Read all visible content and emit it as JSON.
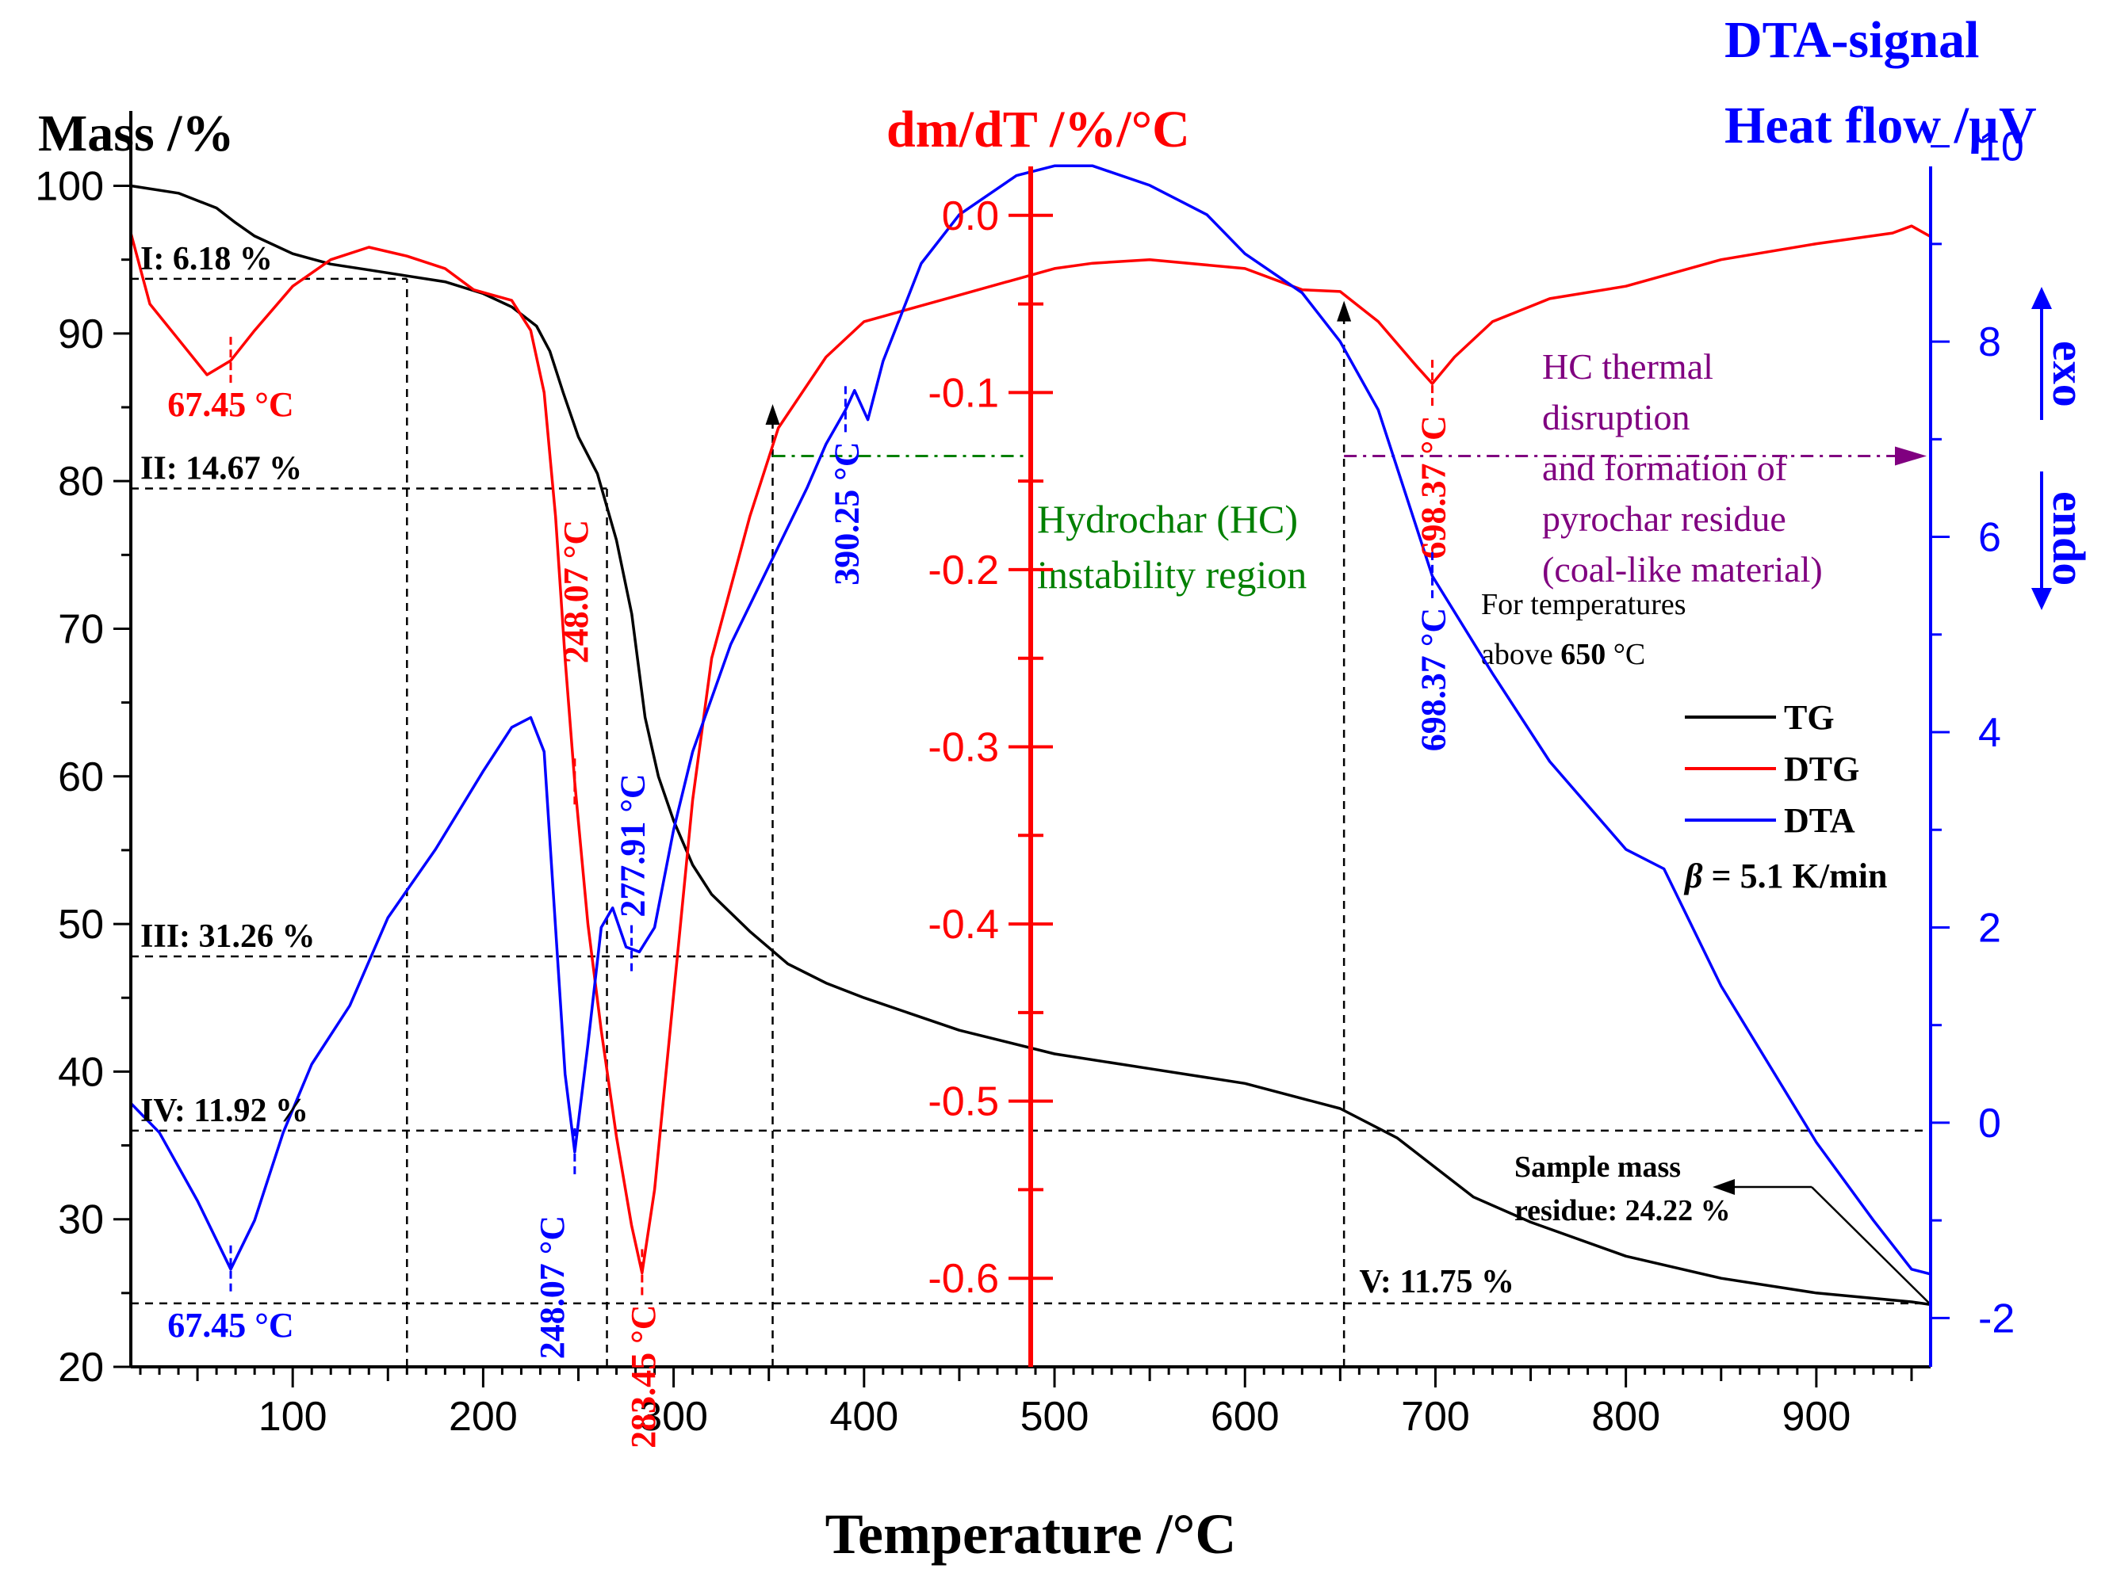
{
  "chart_data": {
    "type": "line",
    "xlabel": "Temperature /",
    "xlabel_unit": "°C",
    "xlim": [
      15,
      960
    ],
    "x_ticks": [
      100,
      200,
      300,
      400,
      500,
      600,
      700,
      800,
      900
    ],
    "axes": {
      "mass": {
        "label": "Mass /%",
        "ylim": [
          20,
          104
        ],
        "ticks": [
          20,
          30,
          40,
          50,
          60,
          70,
          80,
          90,
          100
        ],
        "color": "#000000",
        "position": "left"
      },
      "dtg": {
        "label_main": "dm/dT /%/",
        "label_unit": "°C",
        "ylim": [
          -0.65,
          0.05
        ],
        "ticks": [
          0.0,
          -0.1,
          -0.2,
          -0.3,
          -0.4,
          -0.5,
          -0.6
        ],
        "tick_labels": [
          "0.0",
          "-0.1",
          "-0.2",
          "-0.3",
          "-0.4",
          "-0.5",
          "-0.6"
        ],
        "color": "#ff0000",
        "position": "center"
      },
      "dta": {
        "label_line1": "DTA-signal",
        "label_line2": "Heat flow /µV",
        "ylim": [
          -2.5,
          10.2
        ],
        "ticks": [
          -2,
          0,
          2,
          4,
          6,
          8,
          10
        ],
        "tick_labels": [
          "-2",
          "0",
          "2",
          "4",
          "6",
          "8",
          "10"
        ],
        "color": "#0000ff",
        "position": "right",
        "exo_label": "exo",
        "endo_label": "endo"
      }
    },
    "series": [
      {
        "name": "TG",
        "axis": "mass",
        "color": "#000000",
        "points": [
          [
            15,
            100
          ],
          [
            40,
            99.5
          ],
          [
            60,
            98.5
          ],
          [
            70,
            97.5
          ],
          [
            80,
            96.6
          ],
          [
            100,
            95.4
          ],
          [
            120,
            94.7
          ],
          [
            140,
            94.3
          ],
          [
            160,
            93.9
          ],
          [
            180,
            93.5
          ],
          [
            200,
            92.7
          ],
          [
            215,
            91.8
          ],
          [
            228,
            90.5
          ],
          [
            235,
            88.8
          ],
          [
            242,
            86
          ],
          [
            250,
            83
          ],
          [
            260,
            80.5
          ],
          [
            270,
            76
          ],
          [
            278,
            71
          ],
          [
            285,
            64
          ],
          [
            292,
            60
          ],
          [
            300,
            57
          ],
          [
            310,
            54
          ],
          [
            320,
            52
          ],
          [
            340,
            49.5
          ],
          [
            360,
            47.3
          ],
          [
            380,
            46
          ],
          [
            400,
            45
          ],
          [
            450,
            42.8
          ],
          [
            500,
            41.2
          ],
          [
            550,
            40.2
          ],
          [
            600,
            39.2
          ],
          [
            650,
            37.5
          ],
          [
            680,
            35.5
          ],
          [
            700,
            33.5
          ],
          [
            720,
            31.5
          ],
          [
            750,
            29.8
          ],
          [
            800,
            27.5
          ],
          [
            850,
            26
          ],
          [
            900,
            25
          ],
          [
            950,
            24.4
          ],
          [
            960,
            24.22
          ]
        ]
      },
      {
        "name": "DTG",
        "axis": "dtg",
        "color": "#ff0000",
        "points": [
          [
            15,
            -0.01
          ],
          [
            25,
            -0.05
          ],
          [
            40,
            -0.07
          ],
          [
            55,
            -0.09
          ],
          [
            67.45,
            -0.082
          ],
          [
            80,
            -0.065
          ],
          [
            100,
            -0.04
          ],
          [
            120,
            -0.025
          ],
          [
            140,
            -0.018
          ],
          [
            160,
            -0.023
          ],
          [
            180,
            -0.03
          ],
          [
            195,
            -0.042
          ],
          [
            205,
            -0.045
          ],
          [
            215,
            -0.048
          ],
          [
            225,
            -0.065
          ],
          [
            232,
            -0.1
          ],
          [
            238,
            -0.17
          ],
          [
            243,
            -0.25
          ],
          [
            248.07,
            -0.32
          ],
          [
            255,
            -0.4
          ],
          [
            262,
            -0.46
          ],
          [
            270,
            -0.52
          ],
          [
            277.91,
            -0.57
          ],
          [
            283.45,
            -0.597
          ],
          [
            290,
            -0.55
          ],
          [
            300,
            -0.44
          ],
          [
            310,
            -0.33
          ],
          [
            320,
            -0.25
          ],
          [
            340,
            -0.17
          ],
          [
            355,
            -0.12
          ],
          [
            380,
            -0.08
          ],
          [
            400,
            -0.06
          ],
          [
            450,
            -0.045
          ],
          [
            500,
            -0.03
          ],
          [
            520,
            -0.027
          ],
          [
            550,
            -0.025
          ],
          [
            600,
            -0.03
          ],
          [
            630,
            -0.042
          ],
          [
            650,
            -0.043
          ],
          [
            670,
            -0.06
          ],
          [
            690,
            -0.085
          ],
          [
            698.37,
            -0.095
          ],
          [
            710,
            -0.08
          ],
          [
            730,
            -0.06
          ],
          [
            760,
            -0.047
          ],
          [
            800,
            -0.04
          ],
          [
            850,
            -0.025
          ],
          [
            900,
            -0.016
          ],
          [
            940,
            -0.01
          ],
          [
            950,
            -0.006
          ],
          [
            960,
            -0.012
          ]
        ]
      },
      {
        "name": "DTA",
        "axis": "dta",
        "color": "#0000ff",
        "points": [
          [
            15,
            0.2
          ],
          [
            30,
            -0.1
          ],
          [
            50,
            -0.8
          ],
          [
            67.45,
            -1.5
          ],
          [
            80,
            -1.0
          ],
          [
            95,
            -0.1
          ],
          [
            110,
            0.6
          ],
          [
            130,
            1.2
          ],
          [
            150,
            2.1
          ],
          [
            175,
            2.8
          ],
          [
            200,
            3.6
          ],
          [
            215,
            4.05
          ],
          [
            225,
            4.15
          ],
          [
            232,
            3.8
          ],
          [
            238,
            2.0
          ],
          [
            243,
            0.5
          ],
          [
            248.07,
            -0.3
          ],
          [
            255,
            0.8
          ],
          [
            262,
            2.0
          ],
          [
            268,
            2.2
          ],
          [
            275,
            1.8
          ],
          [
            282,
            1.75
          ],
          [
            290,
            2.0
          ],
          [
            300,
            3.0
          ],
          [
            310,
            3.8
          ],
          [
            330,
            4.9
          ],
          [
            350,
            5.7
          ],
          [
            370,
            6.5
          ],
          [
            380,
            6.95
          ],
          [
            390.25,
            7.3
          ],
          [
            395,
            7.5
          ],
          [
            402,
            7.2
          ],
          [
            410,
            7.8
          ],
          [
            430,
            8.8
          ],
          [
            450,
            9.3
          ],
          [
            480,
            9.7
          ],
          [
            500,
            9.8
          ],
          [
            520,
            9.8
          ],
          [
            550,
            9.6
          ],
          [
            580,
            9.3
          ],
          [
            600,
            8.9
          ],
          [
            630,
            8.5
          ],
          [
            650,
            8.0
          ],
          [
            670,
            7.3
          ],
          [
            698.37,
            5.6
          ],
          [
            730,
            4.6
          ],
          [
            760,
            3.7
          ],
          [
            800,
            2.8
          ],
          [
            820,
            2.6
          ],
          [
            850,
            1.4
          ],
          [
            900,
            -0.2
          ],
          [
            930,
            -1.0
          ],
          [
            950,
            -1.5
          ],
          [
            960,
            -1.55
          ]
        ]
      }
    ],
    "legend": {
      "placement": "right",
      "entries": [
        "TG",
        "DTG",
        "DTA"
      ],
      "beta_symbol": "β",
      "beta_text": " = 5.1 K/min"
    },
    "stages": [
      {
        "label": "I: 6.18 %",
        "mass": 93.7,
        "x_from": 15,
        "x_to": 160
      },
      {
        "label": "II: 14.67 %",
        "mass": 79.5,
        "x_from": 15,
        "x_to": 265
      },
      {
        "label": "III: 31.26 %",
        "mass": 47.8,
        "x_from": 15,
        "x_to": 352
      },
      {
        "label": "IV: 11.92 %",
        "mass": 36.0,
        "x_from": 15,
        "x_to": 960
      },
      {
        "label": "V: 11.75 %",
        "mass": 24.3,
        "x_from": 15,
        "x_to": 960
      }
    ],
    "vertical_guides": [
      {
        "x": 160,
        "mass_from": 20,
        "mass_to": 93.7
      },
      {
        "x": 265,
        "mass_from": 20,
        "mass_to": 79.5
      },
      {
        "x": 352,
        "mass_from": 20,
        "mass_to": 47.8
      },
      {
        "x": 652,
        "mass_from": 20,
        "mass_to": 37.5
      }
    ],
    "peaks": [
      {
        "series": "DTG",
        "x": 67.45,
        "label": "67.45 °C"
      },
      {
        "series": "DTG",
        "x": 248.07,
        "label": "248.07 °C"
      },
      {
        "series": "DTG",
        "x": 283.45,
        "label": "283.45 °C"
      },
      {
        "series": "DTG",
        "x": 698.37,
        "label": "698.37 °C"
      },
      {
        "series": "DTA",
        "x": 67.45,
        "label": "67.45 °C"
      },
      {
        "series": "DTA",
        "x": 248.07,
        "label": "248.07 °C"
      },
      {
        "series": "DTA",
        "x": 277.91,
        "label": "277.91 °C"
      },
      {
        "series": "DTA",
        "x": 390.25,
        "label": "390.25 °C"
      },
      {
        "series": "DTA",
        "x": 698.37,
        "label": "698.37 °C"
      }
    ],
    "annotations": {
      "hc_region_line1": "Hydrochar (HC)",
      "hc_region_line2": "instability region",
      "hc_thermal_lines": [
        "HC thermal",
        "disruption",
        "and formation of",
        "pyrochar residue",
        "(coal-like material)"
      ],
      "temps_line1": "For temperatures",
      "temps_line2_prefix": "above ",
      "temps_line2_value": "650",
      "temps_line2_unit": " °C",
      "residue_line1": "Sample mass",
      "residue_line2": "residue: 24.22 %"
    },
    "colors": {
      "tg": "#000000",
      "dtg": "#ff0000",
      "dta": "#0000ff",
      "hc_region": "#008000",
      "hc_thermal": "#800080"
    }
  }
}
